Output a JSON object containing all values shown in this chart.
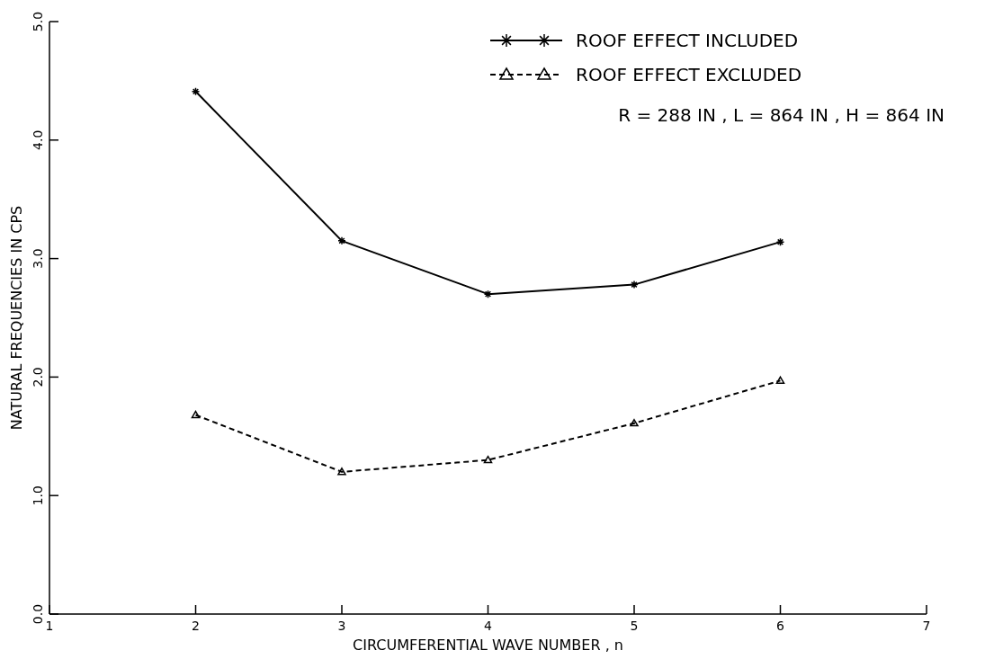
{
  "chart_data": {
    "type": "line",
    "xlabel": "CIRCUMFERENTIAL WAVE NUMBER , n",
    "ylabel": "NATURAL FREQUENCIES IN CPS",
    "x": [
      2,
      3,
      4,
      5,
      6
    ],
    "series": [
      {
        "name": "ROOF EFFECT INCLUDED",
        "color": "#000000",
        "marker": "cross",
        "line_style": "solid",
        "values": [
          4.41,
          3.15,
          2.7,
          2.78,
          3.14
        ]
      },
      {
        "name": "ROOF EFFECT EXCLUDED",
        "color": "#000000",
        "marker": "triangle",
        "line_style": "dashed",
        "values": [
          1.68,
          1.2,
          1.3,
          1.61,
          1.97
        ]
      }
    ],
    "xlim": [
      1,
      7
    ],
    "xticks": [
      1,
      2,
      3,
      4,
      5,
      6,
      7
    ],
    "ylim": [
      0,
      5
    ],
    "yticks": [
      {
        "value": 0,
        "label": "0.0"
      },
      {
        "value": 1,
        "label": "1.0"
      },
      {
        "value": 2,
        "label": "2.0"
      },
      {
        "value": 3,
        "label": "3.0"
      },
      {
        "value": 4,
        "label": "4.0"
      },
      {
        "value": 5,
        "label": "5.0"
      }
    ],
    "legend": "top right",
    "annotations": [
      "R = 288 IN , L = 864 IN , H = 864 IN"
    ]
  }
}
